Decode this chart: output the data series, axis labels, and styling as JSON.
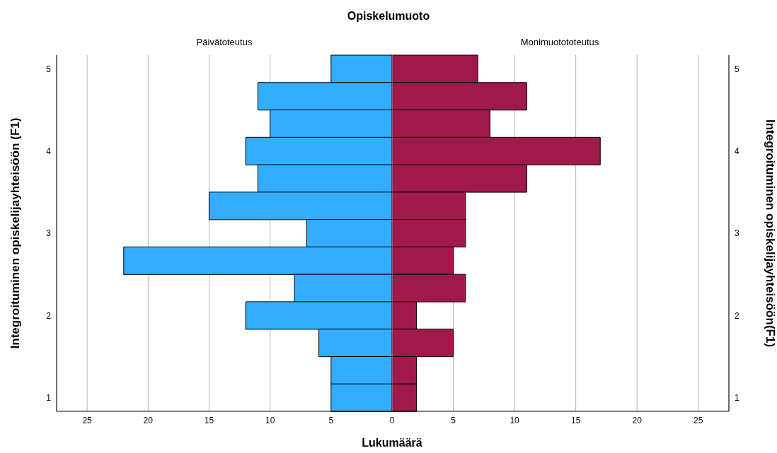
{
  "chart_data": [
    {
      "type": "bar",
      "orientation": "horizontal",
      "title": "Opiskelumuoto",
      "subtitle": "Päivätoteutus",
      "xlabel": "Lukumäärä",
      "ylabel": "Integroituminen opiskelijayhteisöön (F1)",
      "categories": [
        "5",
        null,
        null,
        "4",
        null,
        null,
        "3",
        null,
        null,
        "2",
        null,
        null,
        "1"
      ],
      "values": [
        5,
        11,
        10,
        12,
        11,
        15,
        7,
        22,
        8,
        12,
        6,
        5,
        5
      ],
      "color": "#33adff",
      "xlim": [
        27.5,
        0
      ],
      "xticks": [
        25,
        20,
        15,
        10,
        5,
        0
      ],
      "grid": "x"
    },
    {
      "type": "bar",
      "orientation": "horizontal",
      "subtitle": "Monimuotototeutus",
      "ylabel": "Integroituminen opiskelijayhteisöön(F1)",
      "categories": [
        "5",
        null,
        null,
        "4",
        null,
        null,
        "3",
        null,
        null,
        "2",
        null,
        null,
        "1"
      ],
      "values": [
        7,
        11,
        8,
        17,
        11,
        6,
        6,
        5,
        6,
        2,
        5,
        2,
        2
      ],
      "color": "#a0194b",
      "xlim": [
        0,
        27.5
      ],
      "xticks": [
        5,
        10,
        15,
        20,
        25
      ],
      "grid": "x"
    }
  ]
}
